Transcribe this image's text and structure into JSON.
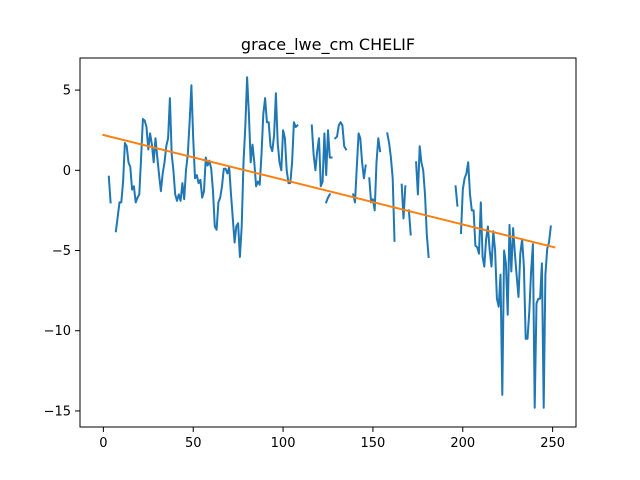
{
  "chart_data": {
    "type": "line",
    "title": "grace_lwe_cm CHELIF",
    "xlabel": "",
    "ylabel": "",
    "xlim": [
      -13,
      263
    ],
    "ylim": [
      -16,
      7
    ],
    "xticks": [
      0,
      50,
      100,
      150,
      200,
      250
    ],
    "yticks": [
      -15,
      -10,
      -5,
      0,
      5
    ],
    "grid": false,
    "series": [
      {
        "color": "#1f77b4",
        "points": [
          [
            3,
            -0.4
          ],
          [
            4,
            -2.0
          ],
          [
            null,
            null
          ],
          [
            7,
            -3.8
          ],
          [
            9,
            -2.0
          ],
          [
            10,
            -2.0
          ],
          [
            11,
            -0.7
          ],
          [
            12,
            1.7
          ],
          [
            13,
            1.5
          ],
          [
            14,
            0.5
          ],
          [
            15,
            0.2
          ],
          [
            16,
            -1.2
          ],
          [
            17,
            -1.0
          ],
          [
            18,
            -2.0
          ],
          [
            19,
            -1.7
          ],
          [
            20,
            -1.5
          ],
          [
            21,
            0.8
          ],
          [
            22,
            3.2
          ],
          [
            23,
            3.1
          ],
          [
            24,
            2.7
          ],
          [
            25,
            1.3
          ],
          [
            26,
            2.3
          ],
          [
            27,
            1.6
          ],
          [
            28,
            0.5
          ],
          [
            29,
            2.0
          ],
          [
            30,
            0.8
          ],
          [
            31,
            -0.3
          ],
          [
            32,
            -1.3
          ],
          [
            33,
            -0.2
          ],
          [
            34,
            0.5
          ],
          [
            35,
            1.5
          ],
          [
            36,
            2.0
          ],
          [
            37,
            4.5
          ],
          [
            38,
            1.0
          ],
          [
            39,
            0.0
          ],
          [
            40,
            -1.5
          ],
          [
            41,
            -1.9
          ],
          [
            42,
            -1.5
          ],
          [
            43,
            -1.9
          ],
          [
            44,
            -0.8
          ],
          [
            45,
            -1.8
          ],
          [
            46,
            0.0
          ],
          [
            47,
            1.0
          ],
          [
            48,
            3.0
          ],
          [
            49,
            5.3
          ],
          [
            50,
            2.0
          ],
          [
            51,
            -0.5
          ],
          [
            52,
            -0.3
          ],
          [
            53,
            -0.8
          ],
          [
            54,
            -0.6
          ],
          [
            55,
            -1.7
          ],
          [
            56,
            -1.3
          ],
          [
            57,
            0.8
          ],
          [
            58,
            0.3
          ],
          [
            59,
            0.6
          ],
          [
            60,
            0.1
          ],
          [
            61,
            -1.3
          ],
          [
            62,
            -3.5
          ],
          [
            63,
            -3.7
          ],
          [
            64,
            -2.0
          ],
          [
            65,
            -1.7
          ],
          [
            66,
            -1.0
          ],
          [
            67,
            0.1
          ],
          [
            68,
            0.1
          ],
          [
            69,
            -0.2
          ],
          [
            70,
            0.2
          ],
          [
            71,
            -1.5
          ],
          [
            72,
            -3.0
          ],
          [
            73,
            -4.5
          ],
          [
            74,
            -3.5
          ],
          [
            75,
            -3.3
          ],
          [
            76,
            -5.4
          ],
          [
            77,
            -3.5
          ],
          [
            78,
            0.5
          ],
          [
            79,
            2.7
          ],
          [
            80,
            5.8
          ],
          [
            81,
            3.5
          ],
          [
            82,
            0.5
          ],
          [
            83,
            1.6
          ],
          [
            84,
            0.5
          ],
          [
            85,
            -1.0
          ],
          [
            86,
            -0.7
          ],
          [
            87,
            -0.9
          ],
          [
            88,
            1.0
          ],
          [
            89,
            3.5
          ],
          [
            90,
            4.5
          ],
          [
            91,
            3.0
          ],
          [
            92,
            3.0
          ],
          [
            93,
            1.5
          ],
          [
            94,
            1.2
          ],
          [
            95,
            2.2
          ],
          [
            96,
            4.8
          ],
          [
            97,
            1.7
          ],
          [
            98,
            0.5
          ],
          [
            99,
            0.0
          ],
          [
            100,
            2.5
          ],
          [
            101,
            2.0
          ],
          [
            102,
            0.0
          ],
          [
            103,
            -0.8
          ],
          [
            104,
            -0.8
          ],
          [
            105,
            0.5
          ],
          [
            106,
            3.0
          ],
          [
            107,
            2.7
          ],
          [
            108,
            2.8
          ],
          [
            null,
            null
          ],
          [
            116,
            2.8
          ],
          [
            117,
            1.0
          ],
          [
            118,
            0.0
          ],
          [
            119,
            1.2
          ],
          [
            120,
            2.0
          ],
          [
            121,
            -1.0
          ],
          [
            122,
            -0.7
          ],
          [
            123,
            2.3
          ],
          [
            124,
            -0.3
          ],
          [
            125,
            2.5
          ],
          [
            126,
            0.8
          ],
          [
            127,
            0.8
          ],
          [
            null,
            null
          ],
          [
            124,
            -2.0
          ],
          [
            125,
            -1.7
          ],
          [
            126,
            -1.5
          ],
          [
            null,
            null
          ],
          [
            129,
            2.0
          ],
          [
            130,
            2.1
          ],
          [
            131,
            2.8
          ],
          [
            132,
            3.0
          ],
          [
            133,
            2.8
          ],
          [
            134,
            1.5
          ],
          [
            135,
            1.3
          ],
          [
            null,
            null
          ],
          [
            139,
            -1.5
          ],
          [
            140,
            -2.0
          ],
          [
            141,
            0.2
          ],
          [
            142,
            2.3
          ],
          [
            143,
            2.0
          ],
          [
            144,
            0.5
          ],
          [
            145,
            -0.5
          ],
          [
            146,
            0.3
          ],
          [
            null,
            null
          ],
          [
            148,
            -0.5
          ],
          [
            149,
            -2.0
          ],
          [
            150,
            -1.8
          ],
          [
            151,
            -2.5
          ],
          [
            152,
            0.5
          ],
          [
            153,
            2.0
          ],
          [
            154,
            1.2
          ],
          [
            null,
            null
          ],
          [
            158,
            2.3
          ],
          [
            159,
            1.7
          ],
          [
            160,
            0.8
          ],
          [
            161,
            -0.5
          ],
          [
            162,
            -4.4
          ],
          [
            null,
            null
          ],
          [
            166,
            -0.9
          ],
          [
            167,
            -3.0
          ],
          [
            168,
            -1.0
          ],
          [
            null,
            null
          ],
          [
            170,
            -2.5
          ],
          [
            171,
            -4.0
          ],
          [
            null,
            null
          ],
          [
            174,
            0.5
          ],
          [
            175,
            -1.5
          ],
          [
            176,
            1.5
          ],
          [
            177,
            0.5
          ],
          [
            178,
            0.0
          ],
          [
            179,
            -1.5
          ],
          [
            180,
            -4.0
          ],
          [
            181,
            -5.4
          ],
          [
            null,
            null
          ],
          [
            196,
            -1.0
          ],
          [
            197,
            -2.2
          ],
          [
            null,
            null
          ],
          [
            199,
            -3.9
          ],
          [
            200,
            -1.2
          ],
          [
            201,
            -0.5
          ],
          [
            202,
            -0.2
          ],
          [
            203,
            0.5
          ],
          [
            204,
            -1.5
          ],
          [
            205,
            -2.5
          ],
          [
            206,
            -2.5
          ],
          [
            207,
            -4.7
          ],
          [
            208,
            -4.8
          ],
          [
            209,
            -5.2
          ],
          [
            210,
            -2.0
          ],
          [
            211,
            -5.4
          ],
          [
            212,
            -6.0
          ],
          [
            213,
            -4.3
          ],
          [
            214,
            -3.5
          ],
          [
            215,
            -5.0
          ],
          [
            216,
            -6.0
          ],
          [
            217,
            -3.8
          ],
          [
            218,
            -5.0
          ],
          [
            219,
            -8.0
          ],
          [
            220,
            -8.5
          ],
          [
            221,
            -6.5
          ],
          [
            222,
            -14.0
          ],
          [
            223,
            -5.0
          ],
          [
            224,
            -5.8
          ],
          [
            225,
            -9.0
          ],
          [
            226,
            -3.4
          ],
          [
            227,
            -6.3
          ],
          [
            228,
            -3.6
          ],
          [
            229,
            -5.2
          ],
          [
            230,
            -6.6
          ],
          [
            231,
            -7.9
          ],
          [
            232,
            -5.2
          ],
          [
            233,
            -4.3
          ],
          [
            234,
            -6.0
          ],
          [
            235,
            -10.5
          ],
          [
            236,
            -10.5
          ],
          [
            237,
            -8.8
          ],
          [
            238,
            -6.3
          ],
          [
            239,
            -4.6
          ],
          [
            240,
            -14.8
          ],
          [
            241,
            -8.3
          ],
          [
            242,
            -8.0
          ],
          [
            243,
            -8.0
          ],
          [
            244,
            -5.8
          ],
          [
            245,
            -14.8
          ],
          [
            246,
            -6.5
          ],
          [
            247,
            -4.9
          ],
          [
            248,
            -4.5
          ],
          [
            249,
            -3.5
          ]
        ]
      },
      {
        "color": "#ff7f0e",
        "points": [
          [
            0,
            2.2
          ],
          [
            251,
            -4.8
          ]
        ]
      }
    ]
  }
}
